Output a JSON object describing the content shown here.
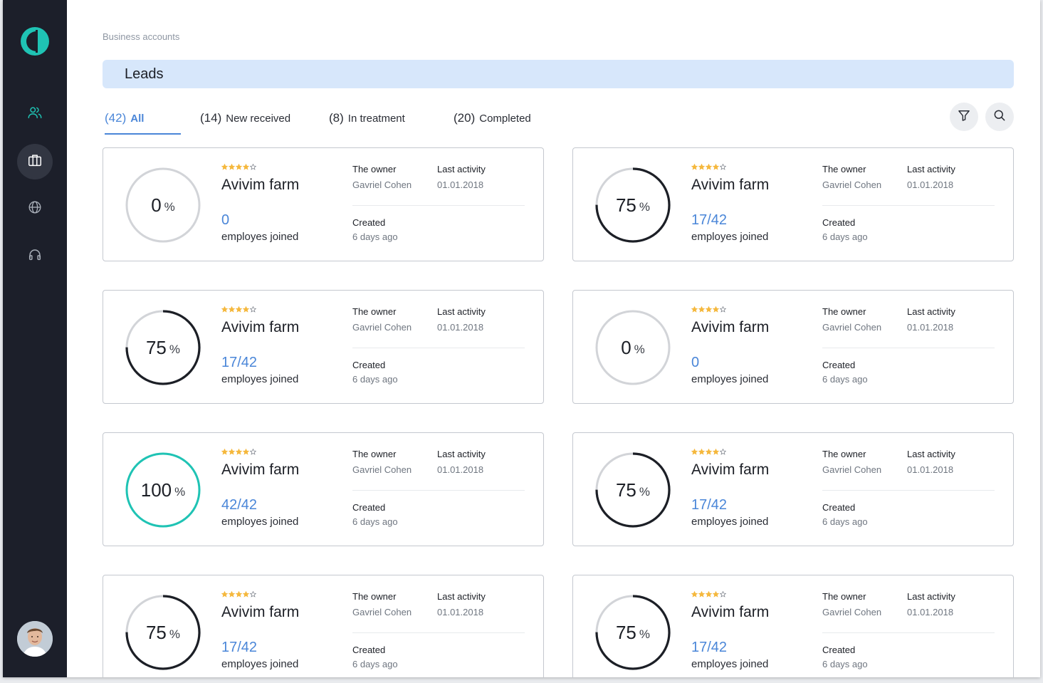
{
  "breadcrumb": "Business accounts",
  "page_title": "Leads",
  "tabs": [
    {
      "count": "(42)",
      "label": "All",
      "active": true
    },
    {
      "count": "(14)",
      "label": "New received",
      "active": false
    },
    {
      "count": "(8)",
      "label": "In treatment",
      "active": false
    },
    {
      "count": "(20)",
      "label": "Completed",
      "active": false
    }
  ],
  "toolbar": {
    "filter_icon": "filter-icon",
    "search_icon": "search-icon"
  },
  "sidebar": {
    "logo": "logo",
    "items": [
      {
        "icon": "users-icon",
        "active": false
      },
      {
        "icon": "briefcase-icon",
        "active": true
      },
      {
        "icon": "globe-icon",
        "active": false
      },
      {
        "icon": "headphones-icon",
        "active": false
      }
    ],
    "avatar": "user-avatar"
  },
  "colors": {
    "accent": "#4a86d8",
    "teal": "#1fc3b4",
    "star": "#f5b83d",
    "sidebar": "#1c1f2a",
    "title_bar": "#d7e7fb",
    "ring_track": "#d2d4d8",
    "ring_progress": "#1c1f26"
  },
  "labels": {
    "percent_sign": "%",
    "owner_head": "The owner",
    "activity_head": "Last activity",
    "created_head": "Created",
    "joined_label": "employes joined"
  },
  "leads": [
    {
      "name": "Avivim farm",
      "rating": 4,
      "progress": 0,
      "progress_text": "0",
      "joined": "0",
      "owner": "Gavriel Cohen",
      "last_activity": "01.01.2018",
      "created": "6 days ago"
    },
    {
      "name": "Avivim farm",
      "rating": 4,
      "progress": 75,
      "progress_text": "75",
      "joined": "17/42",
      "owner": "Gavriel Cohen",
      "last_activity": "01.01.2018",
      "created": "6 days ago"
    },
    {
      "name": "Avivim farm",
      "rating": 4,
      "progress": 75,
      "progress_text": "75",
      "joined": "17/42",
      "owner": "Gavriel Cohen",
      "last_activity": "01.01.2018",
      "created": "6 days ago"
    },
    {
      "name": "Avivim farm",
      "rating": 4,
      "progress": 0,
      "progress_text": "0",
      "joined": "0",
      "owner": "Gavriel Cohen",
      "last_activity": "01.01.2018",
      "created": "6 days ago"
    },
    {
      "name": "Avivim farm",
      "rating": 4,
      "progress": 100,
      "progress_text": "100",
      "joined": "42/42",
      "owner": "Gavriel Cohen",
      "last_activity": "01.01.2018",
      "created": "6 days ago"
    },
    {
      "name": "Avivim farm",
      "rating": 4,
      "progress": 75,
      "progress_text": "75",
      "joined": "17/42",
      "owner": "Gavriel Cohen",
      "last_activity": "01.01.2018",
      "created": "6 days ago"
    },
    {
      "name": "Avivim farm",
      "rating": 4,
      "progress": 75,
      "progress_text": "75",
      "joined": "17/42",
      "owner": "Gavriel Cohen",
      "last_activity": "01.01.2018",
      "created": "6 days ago"
    },
    {
      "name": "Avivim farm",
      "rating": 4,
      "progress": 75,
      "progress_text": "75",
      "joined": "17/42",
      "owner": "Gavriel Cohen",
      "last_activity": "01.01.2018",
      "created": "6 days ago"
    }
  ]
}
